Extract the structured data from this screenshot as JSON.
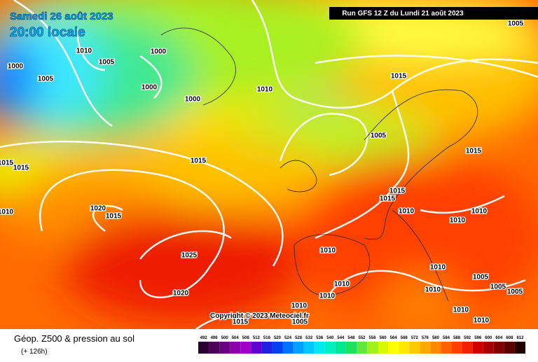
{
  "map": {
    "date": "Samedi 26 août 2023",
    "time": "20:00 locale",
    "run": "Run GFS 12 Z du Lundi 21 août 2023",
    "copyright": "Copyright © 2023 Meteociel.fr",
    "legend_title": "Géop. Z500 & pression au sol",
    "lead": "(+ 126h)",
    "isobar_labels": [
      1010,
      1005,
      1000,
      1000,
      1005,
      1000,
      1000,
      1010,
      1005,
      1015,
      1005,
      1015,
      1015,
      1015,
      1015,
      1015,
      1015,
      1010,
      1010,
      1010,
      1020,
      1015,
      1010,
      1025,
      1010,
      1010,
      1005,
      1010,
      1010,
      1010,
      1005,
      1005,
      1020,
      1010,
      1010,
      1010,
      1015,
      1005
    ],
    "scale": [
      {
        "value": 492,
        "color": "#2a0030"
      },
      {
        "value": 496,
        "color": "#4a0058"
      },
      {
        "value": 500,
        "color": "#6a0080"
      },
      {
        "value": 504,
        "color": "#8a00a8"
      },
      {
        "value": 508,
        "color": "#a000c8"
      },
      {
        "value": 512,
        "color": "#6000d0"
      },
      {
        "value": 516,
        "color": "#2020e0"
      },
      {
        "value": 520,
        "color": "#0040f0"
      },
      {
        "value": 524,
        "color": "#0070ff"
      },
      {
        "value": 528,
        "color": "#00a0ff"
      },
      {
        "value": 532,
        "color": "#00c8ff"
      },
      {
        "value": 536,
        "color": "#00e8f0"
      },
      {
        "value": 540,
        "color": "#00f0c0"
      },
      {
        "value": 544,
        "color": "#00e890"
      },
      {
        "value": 548,
        "color": "#20e060"
      },
      {
        "value": 552,
        "color": "#60e840"
      },
      {
        "value": 556,
        "color": "#a0f020"
      },
      {
        "value": 560,
        "color": "#d8f800"
      },
      {
        "value": 564,
        "color": "#ffff00"
      },
      {
        "value": 568,
        "color": "#ffe800"
      },
      {
        "value": 572,
        "color": "#ffc800"
      },
      {
        "value": 576,
        "color": "#ffa800"
      },
      {
        "value": 580,
        "color": "#ff8800"
      },
      {
        "value": 584,
        "color": "#ff6000"
      },
      {
        "value": 588,
        "color": "#ff4000"
      },
      {
        "value": 592,
        "color": "#f02000"
      },
      {
        "value": 596,
        "color": "#d00000"
      },
      {
        "value": 600,
        "color": "#a80000"
      },
      {
        "value": 604,
        "color": "#800000"
      },
      {
        "value": 608,
        "color": "#580000"
      },
      {
        "value": 612,
        "color": "#200000"
      }
    ]
  }
}
